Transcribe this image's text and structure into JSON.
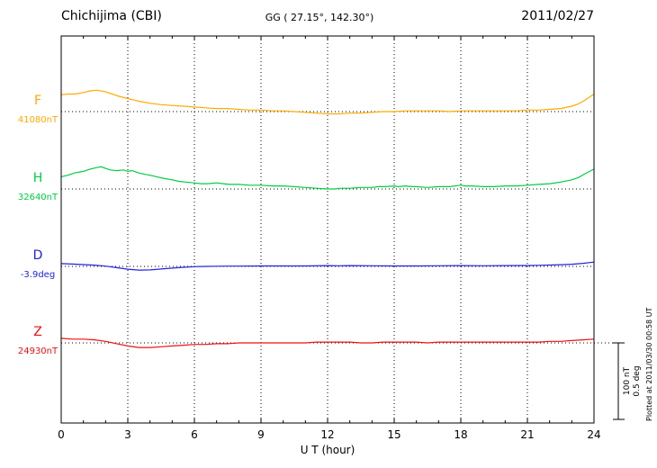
{
  "header": {
    "station": "Chichijima (CBI)",
    "coordinates": "GG ( 27.15°, 142.30°)",
    "date": "2011/02/27"
  },
  "footer_note": "Plotted at 2011/03/30 00:58 UT",
  "scale_bar": {
    "labels": [
      "100 nT",
      "0.5 deg"
    ]
  },
  "chart_data": {
    "type": "line",
    "title": "Chichijima (CBI)",
    "xlabel": "U T (hour)",
    "x_range": [
      0,
      24
    ],
    "x_ticks": [
      0,
      3,
      6,
      9,
      12,
      15,
      18,
      21,
      24
    ],
    "grid_hours": [
      3,
      6,
      9,
      12,
      15,
      18,
      21
    ],
    "grid": true,
    "scale_reference": {
      "nT": 100,
      "deg": 0.5
    },
    "series": [
      {
        "name": "F",
        "baseline_label": "41080nT",
        "baseline_value": 41080,
        "unit": "nT",
        "color": "#ffaa00",
        "points": [
          [
            0,
            22
          ],
          [
            0.3,
            23
          ],
          [
            0.6,
            23
          ],
          [
            1,
            25
          ],
          [
            1.3,
            27
          ],
          [
            1.6,
            28
          ],
          [
            2,
            26
          ],
          [
            2.3,
            23
          ],
          [
            2.6,
            20
          ],
          [
            3,
            17
          ],
          [
            3.3,
            15
          ],
          [
            3.6,
            13
          ],
          [
            4,
            11
          ],
          [
            4.5,
            9
          ],
          [
            5,
            8
          ],
          [
            5.5,
            7
          ],
          [
            6,
            6
          ],
          [
            6.5,
            5
          ],
          [
            7,
            4
          ],
          [
            7.5,
            4
          ],
          [
            8,
            3
          ],
          [
            8.5,
            2
          ],
          [
            9,
            2
          ],
          [
            9.5,
            1
          ],
          [
            10,
            1
          ],
          [
            10.5,
            0
          ],
          [
            11,
            -1
          ],
          [
            11.5,
            -2
          ],
          [
            12,
            -3
          ],
          [
            12.5,
            -3
          ],
          [
            13,
            -2
          ],
          [
            13.5,
            -2
          ],
          [
            14,
            -1
          ],
          [
            14.5,
            0
          ],
          [
            15,
            0
          ],
          [
            15.5,
            1
          ],
          [
            16,
            1
          ],
          [
            16.5,
            1
          ],
          [
            17,
            1
          ],
          [
            17.5,
            0
          ],
          [
            18,
            1
          ],
          [
            18.5,
            1
          ],
          [
            19,
            1
          ],
          [
            19.5,
            1
          ],
          [
            20,
            1
          ],
          [
            20.5,
            1
          ],
          [
            21,
            2
          ],
          [
            21.5,
            2
          ],
          [
            22,
            3
          ],
          [
            22.5,
            4
          ],
          [
            23,
            7
          ],
          [
            23.3,
            10
          ],
          [
            23.6,
            15
          ],
          [
            24,
            23
          ]
        ]
      },
      {
        "name": "H",
        "baseline_label": "32640nT",
        "baseline_value": 32640,
        "unit": "nT",
        "color": "#00cc44",
        "points": [
          [
            0,
            16
          ],
          [
            0.3,
            18
          ],
          [
            0.6,
            21
          ],
          [
            1,
            23
          ],
          [
            1.3,
            26
          ],
          [
            1.6,
            28
          ],
          [
            1.8,
            29
          ],
          [
            2,
            27
          ],
          [
            2.2,
            25
          ],
          [
            2.5,
            24
          ],
          [
            2.8,
            25
          ],
          [
            3,
            23
          ],
          [
            3.2,
            24
          ],
          [
            3.5,
            21
          ],
          [
            3.8,
            19
          ],
          [
            4,
            18
          ],
          [
            4.3,
            16
          ],
          [
            4.6,
            14
          ],
          [
            5,
            12
          ],
          [
            5.3,
            10
          ],
          [
            5.6,
            9
          ],
          [
            6,
            8
          ],
          [
            6.3,
            7
          ],
          [
            6.6,
            7
          ],
          [
            7,
            8
          ],
          [
            7.3,
            7
          ],
          [
            7.6,
            6
          ],
          [
            8,
            6
          ],
          [
            8.5,
            5
          ],
          [
            9,
            5
          ],
          [
            9.5,
            4
          ],
          [
            10,
            4
          ],
          [
            10.5,
            3
          ],
          [
            11,
            2
          ],
          [
            11.5,
            1
          ],
          [
            12,
            0
          ],
          [
            12.3,
            0
          ],
          [
            12.6,
            1
          ],
          [
            13,
            1
          ],
          [
            13.5,
            2
          ],
          [
            14,
            2
          ],
          [
            14.3,
            3
          ],
          [
            14.6,
            3
          ],
          [
            15,
            4
          ],
          [
            15.2,
            3
          ],
          [
            15.5,
            4
          ],
          [
            15.8,
            3
          ],
          [
            16,
            3
          ],
          [
            16.5,
            2
          ],
          [
            17,
            3
          ],
          [
            17.5,
            3
          ],
          [
            18,
            5
          ],
          [
            18.2,
            4
          ],
          [
            18.5,
            4
          ],
          [
            19,
            3
          ],
          [
            19.5,
            3
          ],
          [
            20,
            4
          ],
          [
            20.5,
            4
          ],
          [
            21,
            5
          ],
          [
            21.5,
            6
          ],
          [
            22,
            7
          ],
          [
            22.5,
            9
          ],
          [
            23,
            12
          ],
          [
            23.3,
            15
          ],
          [
            23.6,
            20
          ],
          [
            24,
            26
          ]
        ]
      },
      {
        "name": "D",
        "baseline_label": "-3.9deg",
        "baseline_value": -3.9,
        "unit": "deg",
        "color": "#2222dd",
        "points": [
          [
            0,
            0.018
          ],
          [
            0.5,
            0.015
          ],
          [
            1,
            0.012
          ],
          [
            1.5,
            0.008
          ],
          [
            2,
            0.002
          ],
          [
            2.5,
            -0.008
          ],
          [
            3,
            -0.018
          ],
          [
            3.5,
            -0.024
          ],
          [
            4,
            -0.023
          ],
          [
            4.5,
            -0.017
          ],
          [
            5,
            -0.011
          ],
          [
            5.5,
            -0.006
          ],
          [
            6,
            -0.002
          ],
          [
            6.5,
            0
          ],
          [
            7,
            0.001
          ],
          [
            7.5,
            0.002
          ],
          [
            8,
            0.002
          ],
          [
            9,
            0.003
          ],
          [
            10,
            0.003
          ],
          [
            11,
            0.003
          ],
          [
            12,
            0.005
          ],
          [
            12.5,
            0.004
          ],
          [
            13,
            0.005
          ],
          [
            14,
            0.004
          ],
          [
            15,
            0.003
          ],
          [
            16,
            0.003
          ],
          [
            17,
            0.004
          ],
          [
            18,
            0.005
          ],
          [
            19,
            0.004
          ],
          [
            20,
            0.005
          ],
          [
            21,
            0.006
          ],
          [
            21.5,
            0.007
          ],
          [
            22,
            0.009
          ],
          [
            22.5,
            0.011
          ],
          [
            23,
            0.014
          ],
          [
            23.5,
            0.02
          ],
          [
            24,
            0.028
          ]
        ]
      },
      {
        "name": "Z",
        "baseline_label": "24930nT",
        "baseline_value": 24930,
        "unit": "nT",
        "color": "#ee1111",
        "points": [
          [
            0,
            6
          ],
          [
            0.5,
            5
          ],
          [
            1,
            5
          ],
          [
            1.5,
            4
          ],
          [
            2,
            2
          ],
          [
            2.5,
            -1
          ],
          [
            3,
            -4
          ],
          [
            3.5,
            -6
          ],
          [
            4,
            -6
          ],
          [
            4.5,
            -5
          ],
          [
            5,
            -4
          ],
          [
            5.5,
            -3
          ],
          [
            6,
            -2
          ],
          [
            6.5,
            -2
          ],
          [
            7,
            -1
          ],
          [
            7.5,
            -1
          ],
          [
            8,
            0
          ],
          [
            8.5,
            0
          ],
          [
            9,
            0
          ],
          [
            9.5,
            0
          ],
          [
            10,
            0
          ],
          [
            10.5,
            0
          ],
          [
            11,
            0
          ],
          [
            11.5,
            1
          ],
          [
            12,
            1
          ],
          [
            12.5,
            1
          ],
          [
            13,
            1
          ],
          [
            13.5,
            0
          ],
          [
            14,
            0
          ],
          [
            14.5,
            1
          ],
          [
            15,
            1
          ],
          [
            15.5,
            1
          ],
          [
            16,
            1
          ],
          [
            16.5,
            0
          ],
          [
            17,
            1
          ],
          [
            17.5,
            1
          ],
          [
            18,
            1
          ],
          [
            18.5,
            1
          ],
          [
            19,
            1
          ],
          [
            19.5,
            1
          ],
          [
            20,
            1
          ],
          [
            20.5,
            1
          ],
          [
            21,
            1
          ],
          [
            21.5,
            1
          ],
          [
            22,
            2
          ],
          [
            22.5,
            2
          ],
          [
            23,
            3
          ],
          [
            23.5,
            4
          ],
          [
            24,
            5
          ]
        ]
      }
    ]
  }
}
